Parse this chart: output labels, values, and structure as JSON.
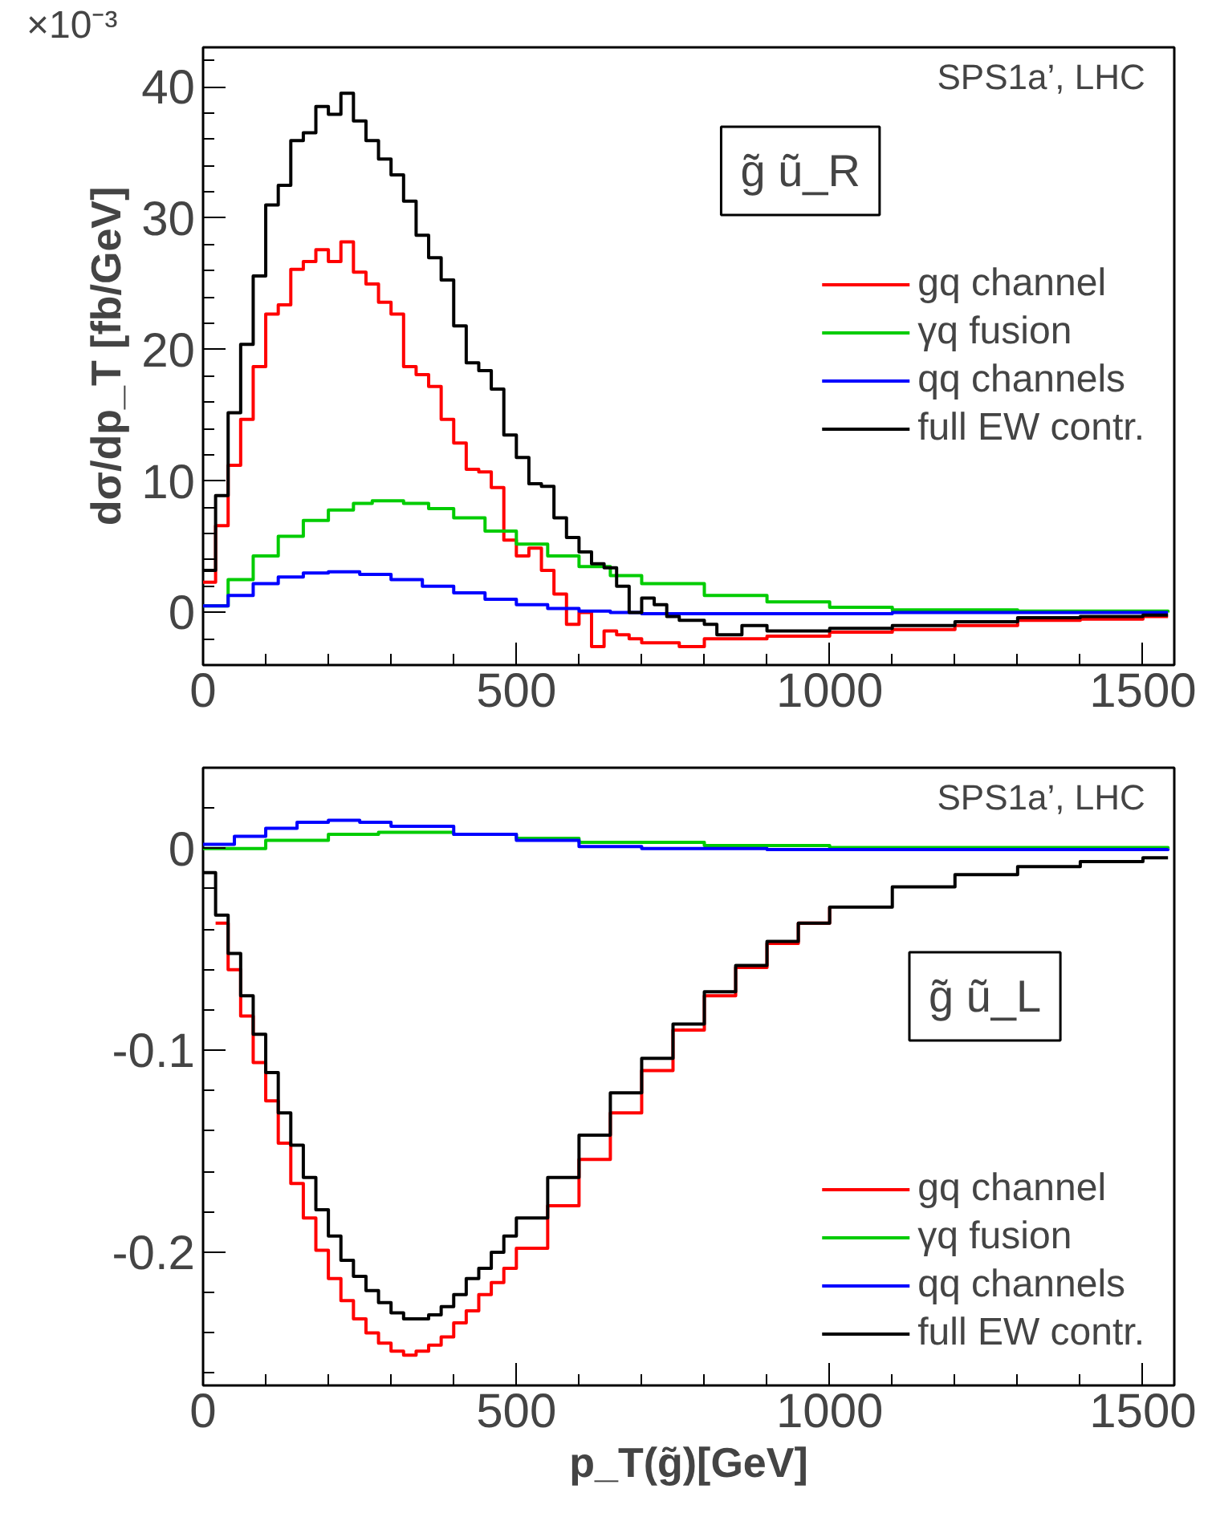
{
  "chart_data": [
    {
      "type": "step",
      "ylabel": "dσ/dp_T [fb/GeV]",
      "annotations": [
        "SPS1a’, LHC",
        "g̃ ũ_R",
        "×10⁻³"
      ],
      "xlim": [
        0,
        1550
      ],
      "ylim": [
        -4,
        43
      ],
      "xticks": [
        0,
        500,
        1000,
        1500
      ],
      "yticks": [
        0,
        10,
        20,
        30,
        40
      ],
      "grid": false,
      "legend": "right",
      "line_style": "solid",
      "marker": "none",
      "series": [
        {
          "name": "gq channel",
          "color": "#ff0000",
          "x": [
            0,
            20,
            40,
            60,
            80,
            100,
            120,
            140,
            160,
            180,
            200,
            220,
            240,
            260,
            280,
            300,
            320,
            340,
            360,
            380,
            400,
            420,
            440,
            460,
            480,
            500,
            520,
            540,
            560,
            580,
            600,
            620,
            640,
            660,
            680,
            700,
            760,
            800,
            900,
            1000,
            1100,
            1200,
            1300,
            1400,
            1500,
            1540
          ],
          "values": [
            2.3,
            6.6,
            11.2,
            14.7,
            18.7,
            22.7,
            23.4,
            26.1,
            26.7,
            27.6,
            26.7,
            28.2,
            25.9,
            25,
            23.6,
            22.7,
            18.7,
            18.1,
            17.2,
            14.7,
            12.9,
            10.9,
            10.7,
            9.5,
            5.5,
            4.3,
            4.9,
            3.2,
            1.4,
            -0.9,
            0,
            -2.6,
            -1.4,
            -1.7,
            -2,
            -2.3,
            -2.6,
            -2,
            -1.8,
            -1.5,
            -1.3,
            -1,
            -0.6,
            -0.5,
            -0.3,
            -0.3
          ]
        },
        {
          "name": "γq fusion",
          "color": "#00cc00",
          "x": [
            0,
            40,
            80,
            120,
            160,
            200,
            240,
            270,
            320,
            360,
            400,
            450,
            500,
            550,
            600,
            650,
            700,
            800,
            900,
            1000,
            1100,
            1300,
            1540
          ],
          "values": [
            0.5,
            2.5,
            4.3,
            5.8,
            7,
            7.8,
            8.3,
            8.5,
            8.3,
            7.9,
            7.2,
            6.2,
            5.2,
            4.3,
            3.5,
            2.8,
            2.2,
            1.3,
            0.8,
            0.4,
            0.2,
            0.1,
            0
          ]
        },
        {
          "name": "qq channels",
          "color": "#0000ff",
          "x": [
            0,
            40,
            80,
            120,
            160,
            200,
            250,
            300,
            350,
            400,
            450,
            500,
            550,
            600,
            650,
            700,
            900,
            1100,
            1540
          ],
          "values": [
            0.5,
            1.3,
            2.2,
            2.7,
            3,
            3.1,
            2.9,
            2.5,
            2,
            1.5,
            1,
            0.6,
            0.3,
            0.1,
            0,
            -0.1,
            -0.1,
            0,
            0
          ]
        },
        {
          "name": "full EW contr.",
          "color": "#000000",
          "x": [
            0,
            20,
            40,
            60,
            80,
            100,
            120,
            140,
            160,
            180,
            200,
            220,
            240,
            260,
            280,
            300,
            320,
            340,
            360,
            380,
            400,
            420,
            440,
            460,
            480,
            500,
            520,
            540,
            560,
            580,
            600,
            620,
            640,
            660,
            680,
            700,
            720,
            740,
            760,
            800,
            820,
            860,
            900,
            1000,
            1100,
            1200,
            1300,
            1400,
            1500,
            1540
          ],
          "values": [
            3.2,
            8.9,
            15.2,
            20.4,
            25.6,
            31,
            32.5,
            35.9,
            36.5,
            38.5,
            37.9,
            39.5,
            37.4,
            35.9,
            34.5,
            33.3,
            31.3,
            28.7,
            27,
            25.3,
            21.8,
            19,
            18.4,
            17,
            13.5,
            11.8,
            9.8,
            9.6,
            7.2,
            5.7,
            4.6,
            3.7,
            3.4,
            2,
            0,
            1.1,
            0.6,
            -0.3,
            -0.6,
            -0.9,
            -1.7,
            -1,
            -1.4,
            -1.2,
            -1,
            -0.7,
            -0.4,
            -0.3,
            -0.2,
            -0.2
          ]
        }
      ]
    },
    {
      "type": "step",
      "xlabel": "p_T(g̃)[GeV]",
      "annotations": [
        "SPS1a’, LHC",
        "g̃ ũ_L"
      ],
      "xlim": [
        0,
        1550
      ],
      "ylim": [
        -0.266,
        0.04
      ],
      "xticks": [
        0,
        500,
        1000,
        1500
      ],
      "yticks": [
        0,
        -0.1,
        -0.2
      ],
      "grid": false,
      "legend": "bottom right",
      "line_style": "solid",
      "marker": "none",
      "series": [
        {
          "name": "gq channel",
          "color": "#ff0000",
          "x": [
            20,
            40,
            60,
            80,
            100,
            120,
            140,
            160,
            180,
            200,
            220,
            240,
            260,
            280,
            300,
            320,
            340,
            360,
            380,
            400,
            420,
            440,
            460,
            480,
            500,
            550,
            600,
            650,
            700,
            750,
            800,
            850,
            900,
            950,
            1000
          ],
          "values": [
            -0.037,
            -0.06,
            -0.083,
            -0.106,
            -0.125,
            -0.146,
            -0.166,
            -0.183,
            -0.199,
            -0.213,
            -0.224,
            -0.233,
            -0.24,
            -0.245,
            -0.249,
            -0.251,
            -0.249,
            -0.246,
            -0.242,
            -0.235,
            -0.229,
            -0.221,
            -0.215,
            -0.208,
            -0.198,
            -0.177,
            -0.154,
            -0.131,
            -0.11,
            -0.09,
            -0.073,
            -0.059,
            -0.047,
            -0.037,
            -0.029
          ]
        },
        {
          "name": "γq fusion",
          "color": "#00cc00",
          "x": [
            0,
            100,
            200,
            280,
            400,
            500,
            600,
            800,
            1000,
            1540
          ],
          "values": [
            0,
            0.004,
            0.007,
            0.008,
            0.007,
            0.005,
            0.003,
            0.0015,
            0.0005,
            0
          ]
        },
        {
          "name": "qq channels",
          "color": "#0000ff",
          "x": [
            0,
            50,
            100,
            150,
            200,
            250,
            300,
            400,
            500,
            600,
            700,
            900,
            1540
          ],
          "values": [
            0.002,
            0.006,
            0.01,
            0.013,
            0.014,
            0.013,
            0.011,
            0.007,
            0.004,
            0.001,
            0,
            -0.0005,
            0
          ]
        },
        {
          "name": "full EW contr.",
          "color": "#000000",
          "x": [
            0,
            20,
            40,
            60,
            80,
            100,
            120,
            140,
            160,
            180,
            200,
            220,
            240,
            260,
            280,
            300,
            320,
            340,
            360,
            380,
            400,
            420,
            440,
            460,
            480,
            500,
            550,
            600,
            650,
            700,
            750,
            800,
            850,
            900,
            950,
            1000,
            1100,
            1200,
            1300,
            1400,
            1500,
            1540
          ],
          "values": [
            -0.012,
            -0.033,
            -0.052,
            -0.073,
            -0.092,
            -0.111,
            -0.131,
            -0.147,
            -0.163,
            -0.179,
            -0.192,
            -0.204,
            -0.212,
            -0.219,
            -0.225,
            -0.23,
            -0.233,
            -0.233,
            -0.231,
            -0.227,
            -0.221,
            -0.213,
            -0.208,
            -0.2,
            -0.192,
            -0.183,
            -0.163,
            -0.142,
            -0.121,
            -0.104,
            -0.087,
            -0.071,
            -0.058,
            -0.046,
            -0.037,
            -0.029,
            -0.019,
            -0.013,
            -0.009,
            -0.0065,
            -0.0046,
            -0.0046
          ]
        }
      ]
    }
  ]
}
